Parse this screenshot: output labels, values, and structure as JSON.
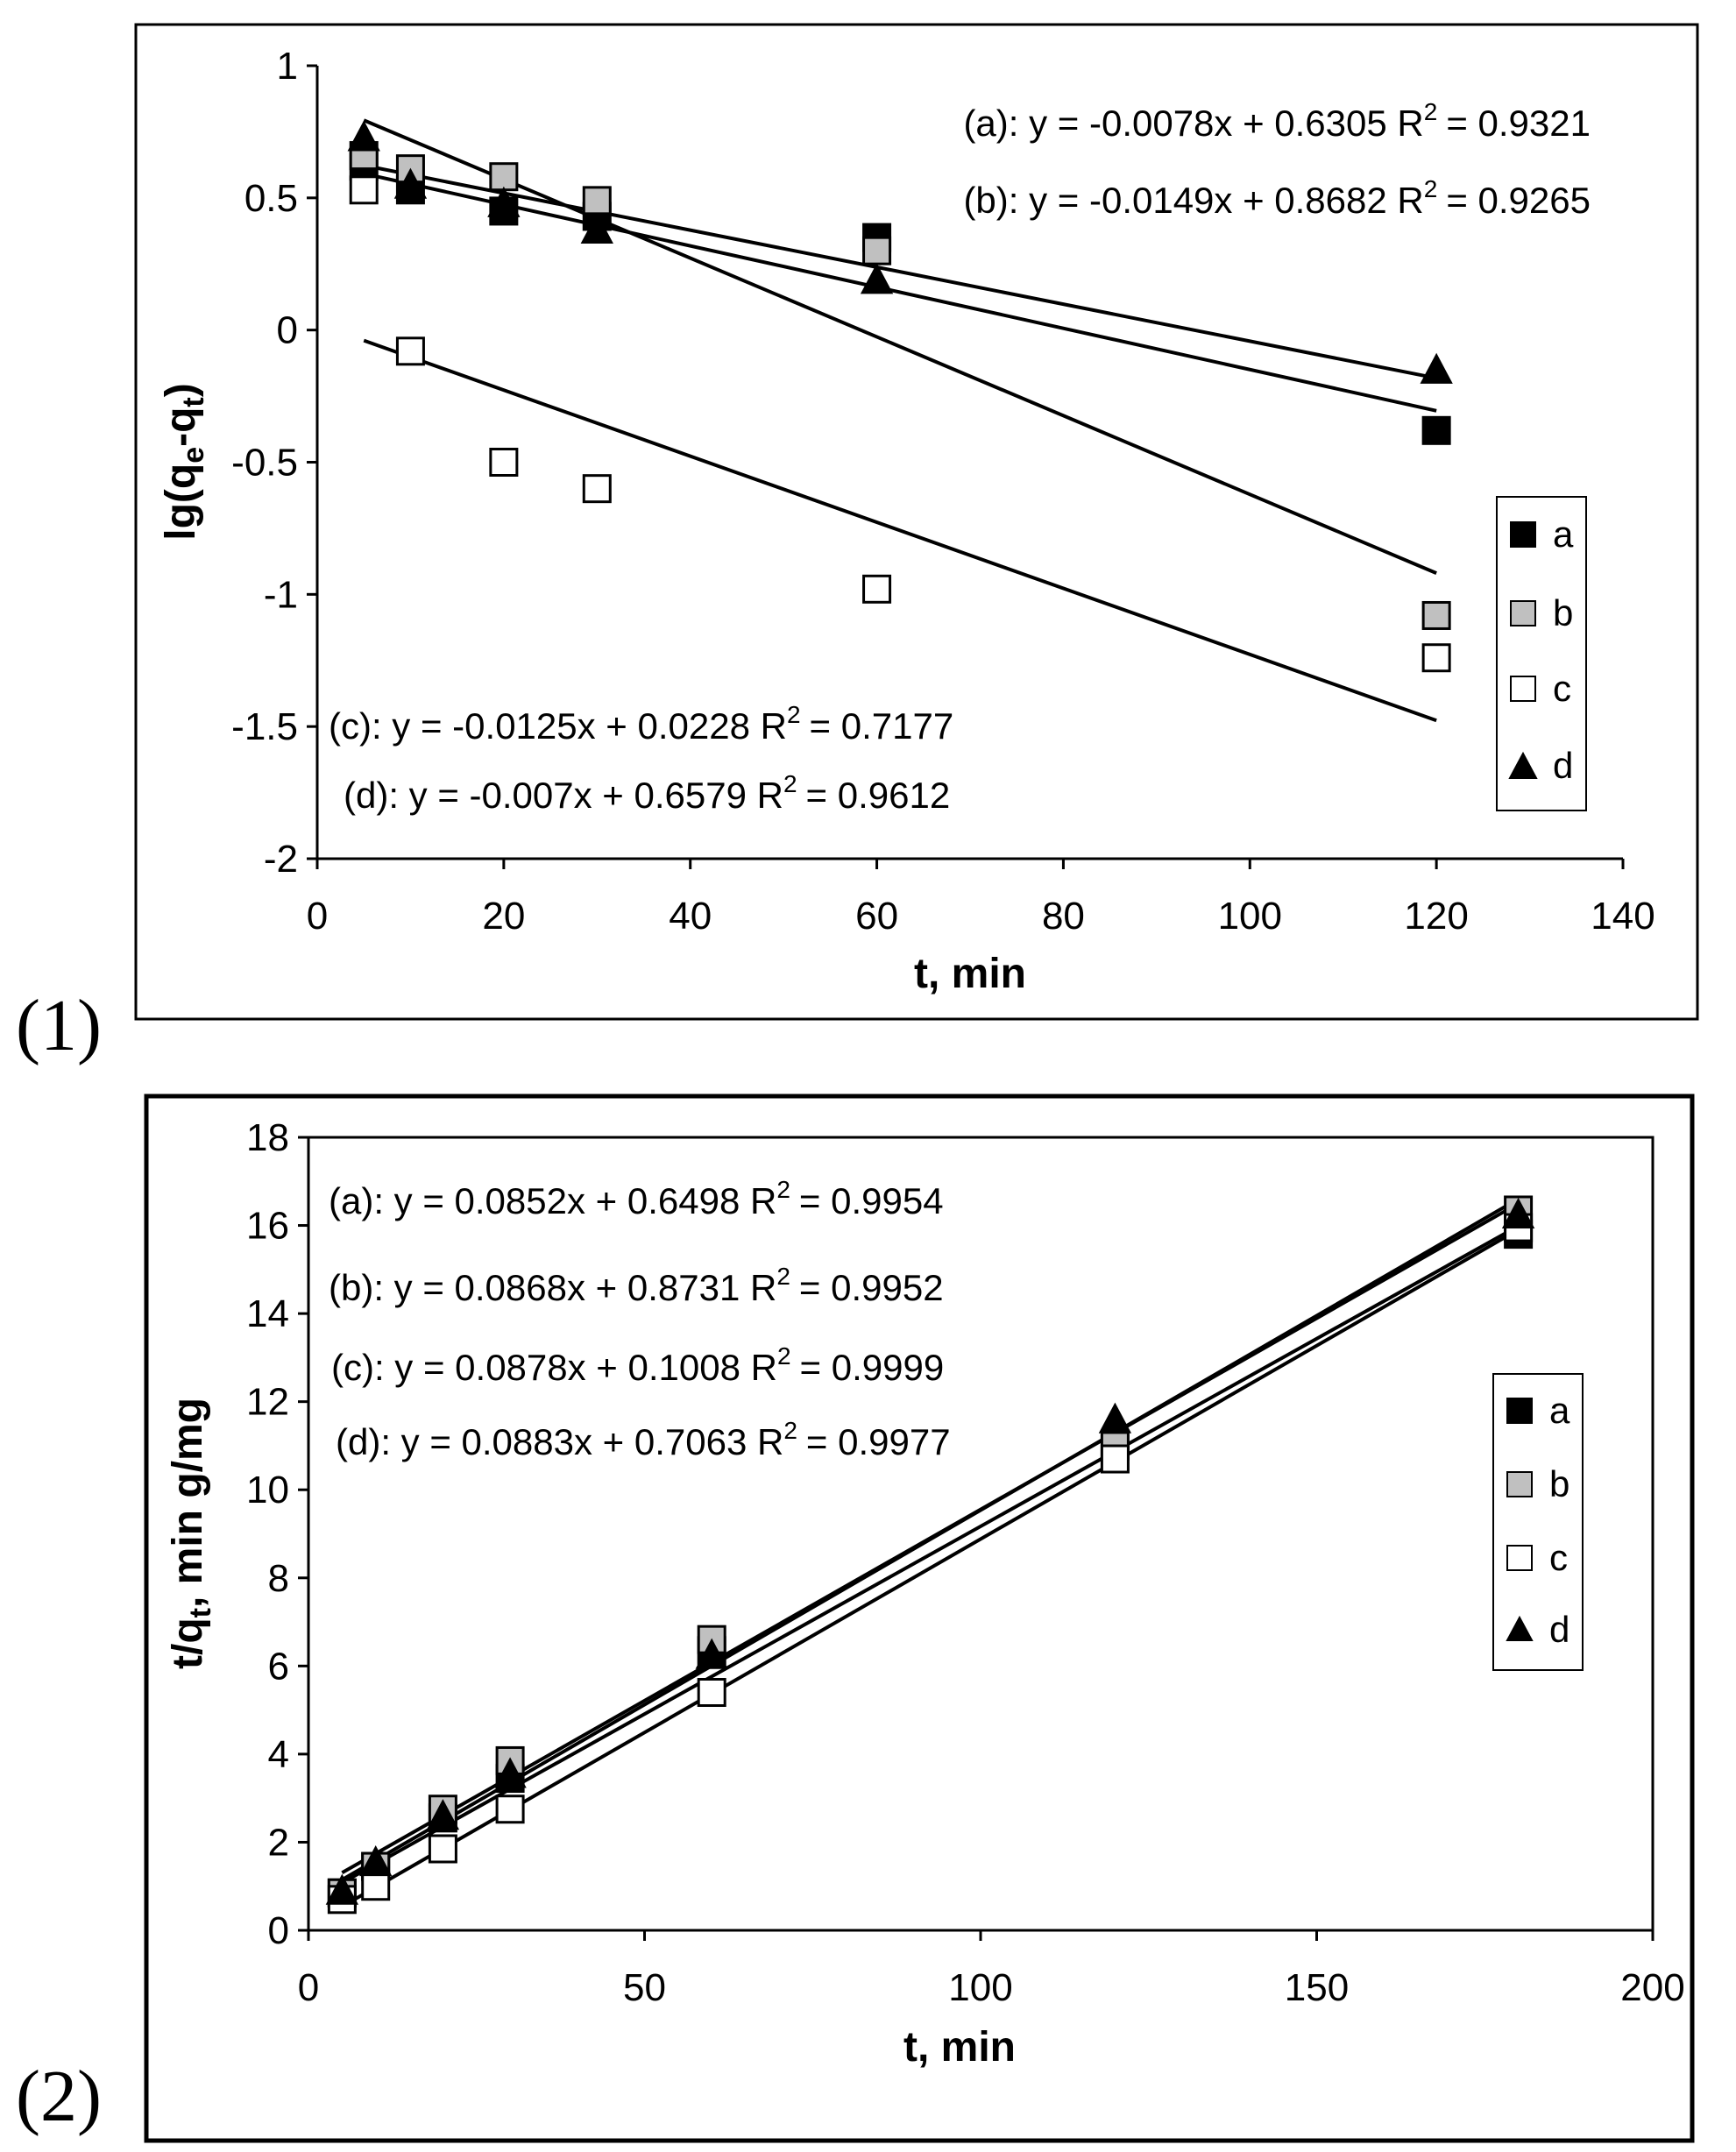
{
  "chart_data": [
    {
      "panel_label": "(1)",
      "type": "scatter",
      "xlabel": "t, min",
      "ylabel_main": "lg(q",
      "ylabel_sub1": "e",
      "ylabel_mid": "-q",
      "ylabel_sub2": "t",
      "ylabel_end": ")",
      "xlim": [
        0,
        140
      ],
      "ylim": [
        -2,
        1
      ],
      "xticks": [
        "0",
        "20",
        "40",
        "60",
        "80",
        "100",
        "120",
        "140"
      ],
      "yticks": [
        "1",
        "0.5",
        "0",
        "-0.5",
        "-1",
        "-1.5",
        "-2"
      ],
      "series": [
        {
          "name": "a",
          "marker": "square",
          "fill": "#000000",
          "x": [
            5,
            10,
            20,
            30,
            60,
            120
          ],
          "y": [
            0.62,
            0.53,
            0.45,
            0.43,
            0.35,
            -0.38
          ]
        },
        {
          "name": "b",
          "marker": "square",
          "fill": "#c0c0c0",
          "x": [
            5,
            10,
            20,
            30,
            60,
            120
          ],
          "y": [
            0.66,
            0.61,
            0.58,
            0.49,
            0.3,
            -1.08
          ]
        },
        {
          "name": "c",
          "marker": "square",
          "fill": "#ffffff",
          "x": [
            5,
            10,
            20,
            30,
            60,
            120
          ],
          "y": [
            0.53,
            -0.08,
            -0.5,
            -0.6,
            -0.98,
            -1.24
          ]
        },
        {
          "name": "d",
          "marker": "triangle",
          "fill": "#000000",
          "x": [
            5,
            10,
            20,
            30,
            60,
            120
          ],
          "y": [
            0.73,
            0.55,
            0.48,
            0.38,
            0.19,
            -0.15
          ]
        }
      ],
      "fits": [
        {
          "name": "a",
          "slope": -0.0078,
          "intercept": 0.6305
        },
        {
          "name": "b",
          "slope": -0.0149,
          "intercept": 0.8682
        },
        {
          "name": "c",
          "slope": -0.0125,
          "intercept": 0.0228
        },
        {
          "name": "d",
          "slope": -0.007,
          "intercept": 0.6579
        }
      ],
      "fit_range": [
        5,
        120
      ],
      "equations": [
        {
          "text": "(a): y = -0.0078x + 0.6305 R",
          "r2": "= 0.9321"
        },
        {
          "text": "(b): y = -0.0149x + 0.8682 R",
          "r2": "= 0.9265"
        },
        {
          "text": "(c): y = -0.0125x + 0.0228 R",
          "r2": "= 0.7177"
        },
        {
          "text": "(d): y = -0.007x + 0.6579 R",
          "r2": "= 0.9612"
        }
      ],
      "legend": [
        "a",
        "b",
        "c",
        "d"
      ]
    },
    {
      "panel_label": "(2)",
      "type": "scatter",
      "xlabel": "t, min",
      "ylabel_main": "t/q",
      "ylabel_sub": "t",
      "ylabel_end": ", min g/mg",
      "xlim": [
        0,
        200
      ],
      "ylim": [
        0,
        18
      ],
      "xticks": [
        "0",
        "50",
        "100",
        "150",
        "200"
      ],
      "yticks": [
        "18",
        "16",
        "14",
        "12",
        "10",
        "8",
        "6",
        "4",
        "2",
        "0"
      ],
      "series": [
        {
          "name": "a",
          "marker": "square",
          "fill": "#000000",
          "x": [
            5,
            10,
            20,
            30,
            60,
            180
          ],
          "y": [
            0.85,
            1.45,
            2.55,
            3.45,
            6.35,
            15.8
          ]
        },
        {
          "name": "b",
          "marker": "square",
          "fill": "#c0c0c0",
          "x": [
            5,
            10,
            20,
            30,
            60,
            120,
            180
          ],
          "y": [
            0.85,
            1.45,
            2.75,
            3.85,
            6.6,
            11.0,
            16.35
          ]
        },
        {
          "name": "c",
          "marker": "square",
          "fill": "#ffffff",
          "x": [
            5,
            10,
            20,
            30,
            60,
            120,
            180
          ],
          "y": [
            0.7,
            1.0,
            1.85,
            2.75,
            5.4,
            10.7,
            15.95
          ]
        },
        {
          "name": "d",
          "marker": "triangle",
          "fill": "#000000",
          "x": [
            5,
            10,
            20,
            30,
            60,
            120,
            180
          ],
          "y": [
            0.9,
            1.55,
            2.6,
            3.55,
            6.25,
            11.6,
            16.25
          ]
        }
      ],
      "fits": [
        {
          "name": "a",
          "slope": 0.0852,
          "intercept": 0.6498
        },
        {
          "name": "b",
          "slope": 0.0868,
          "intercept": 0.8731
        },
        {
          "name": "c",
          "slope": 0.0878,
          "intercept": 0.1008
        },
        {
          "name": "d",
          "slope": 0.0883,
          "intercept": 0.7063
        }
      ],
      "fit_range": [
        5,
        180
      ],
      "equations": [
        {
          "text": "(a): y = 0.0852x + 0.6498 R",
          "r2": "= 0.9954"
        },
        {
          "text": "(b): y = 0.0868x + 0.8731 R",
          "r2": "= 0.9952"
        },
        {
          "text": "(c): y = 0.0878x + 0.1008 R",
          "r2": "= 0.9999"
        },
        {
          "text": "(d): y = 0.0883x + 0.7063 R",
          "r2": "= 0.9977"
        }
      ],
      "legend": [
        "a",
        "b",
        "c",
        "d"
      ]
    }
  ],
  "r2_superscript": "2"
}
